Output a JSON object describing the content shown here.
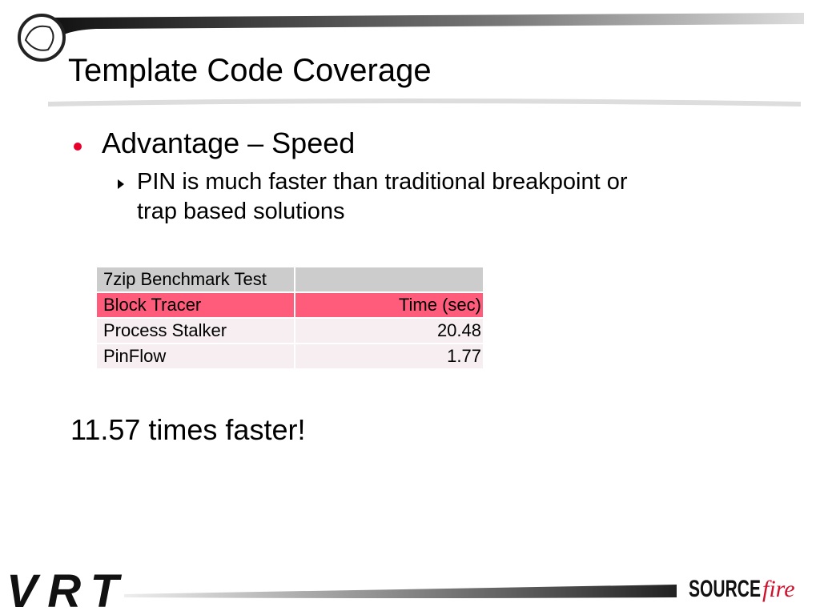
{
  "header": {
    "title": "Template Code Coverage"
  },
  "bullets": [
    {
      "text": "Advantage – Speed",
      "sub": [
        {
          "lines": [
            "PIN is much faster than traditional breakpoint or",
            "trap based solutions"
          ]
        }
      ]
    }
  ],
  "table": {
    "caption": "7zip Benchmark Test",
    "rows": [
      [
        "Block Tracer",
        "Time (sec)"
      ],
      [
        "Process Stalker",
        20.48
      ],
      [
        "PinFlow",
        1.77
      ]
    ]
  },
  "note": "11.57 times faster!",
  "footer": {
    "left_logo": "VRT",
    "right_logo_main": "SOURCE",
    "right_logo_script": "fire"
  }
}
